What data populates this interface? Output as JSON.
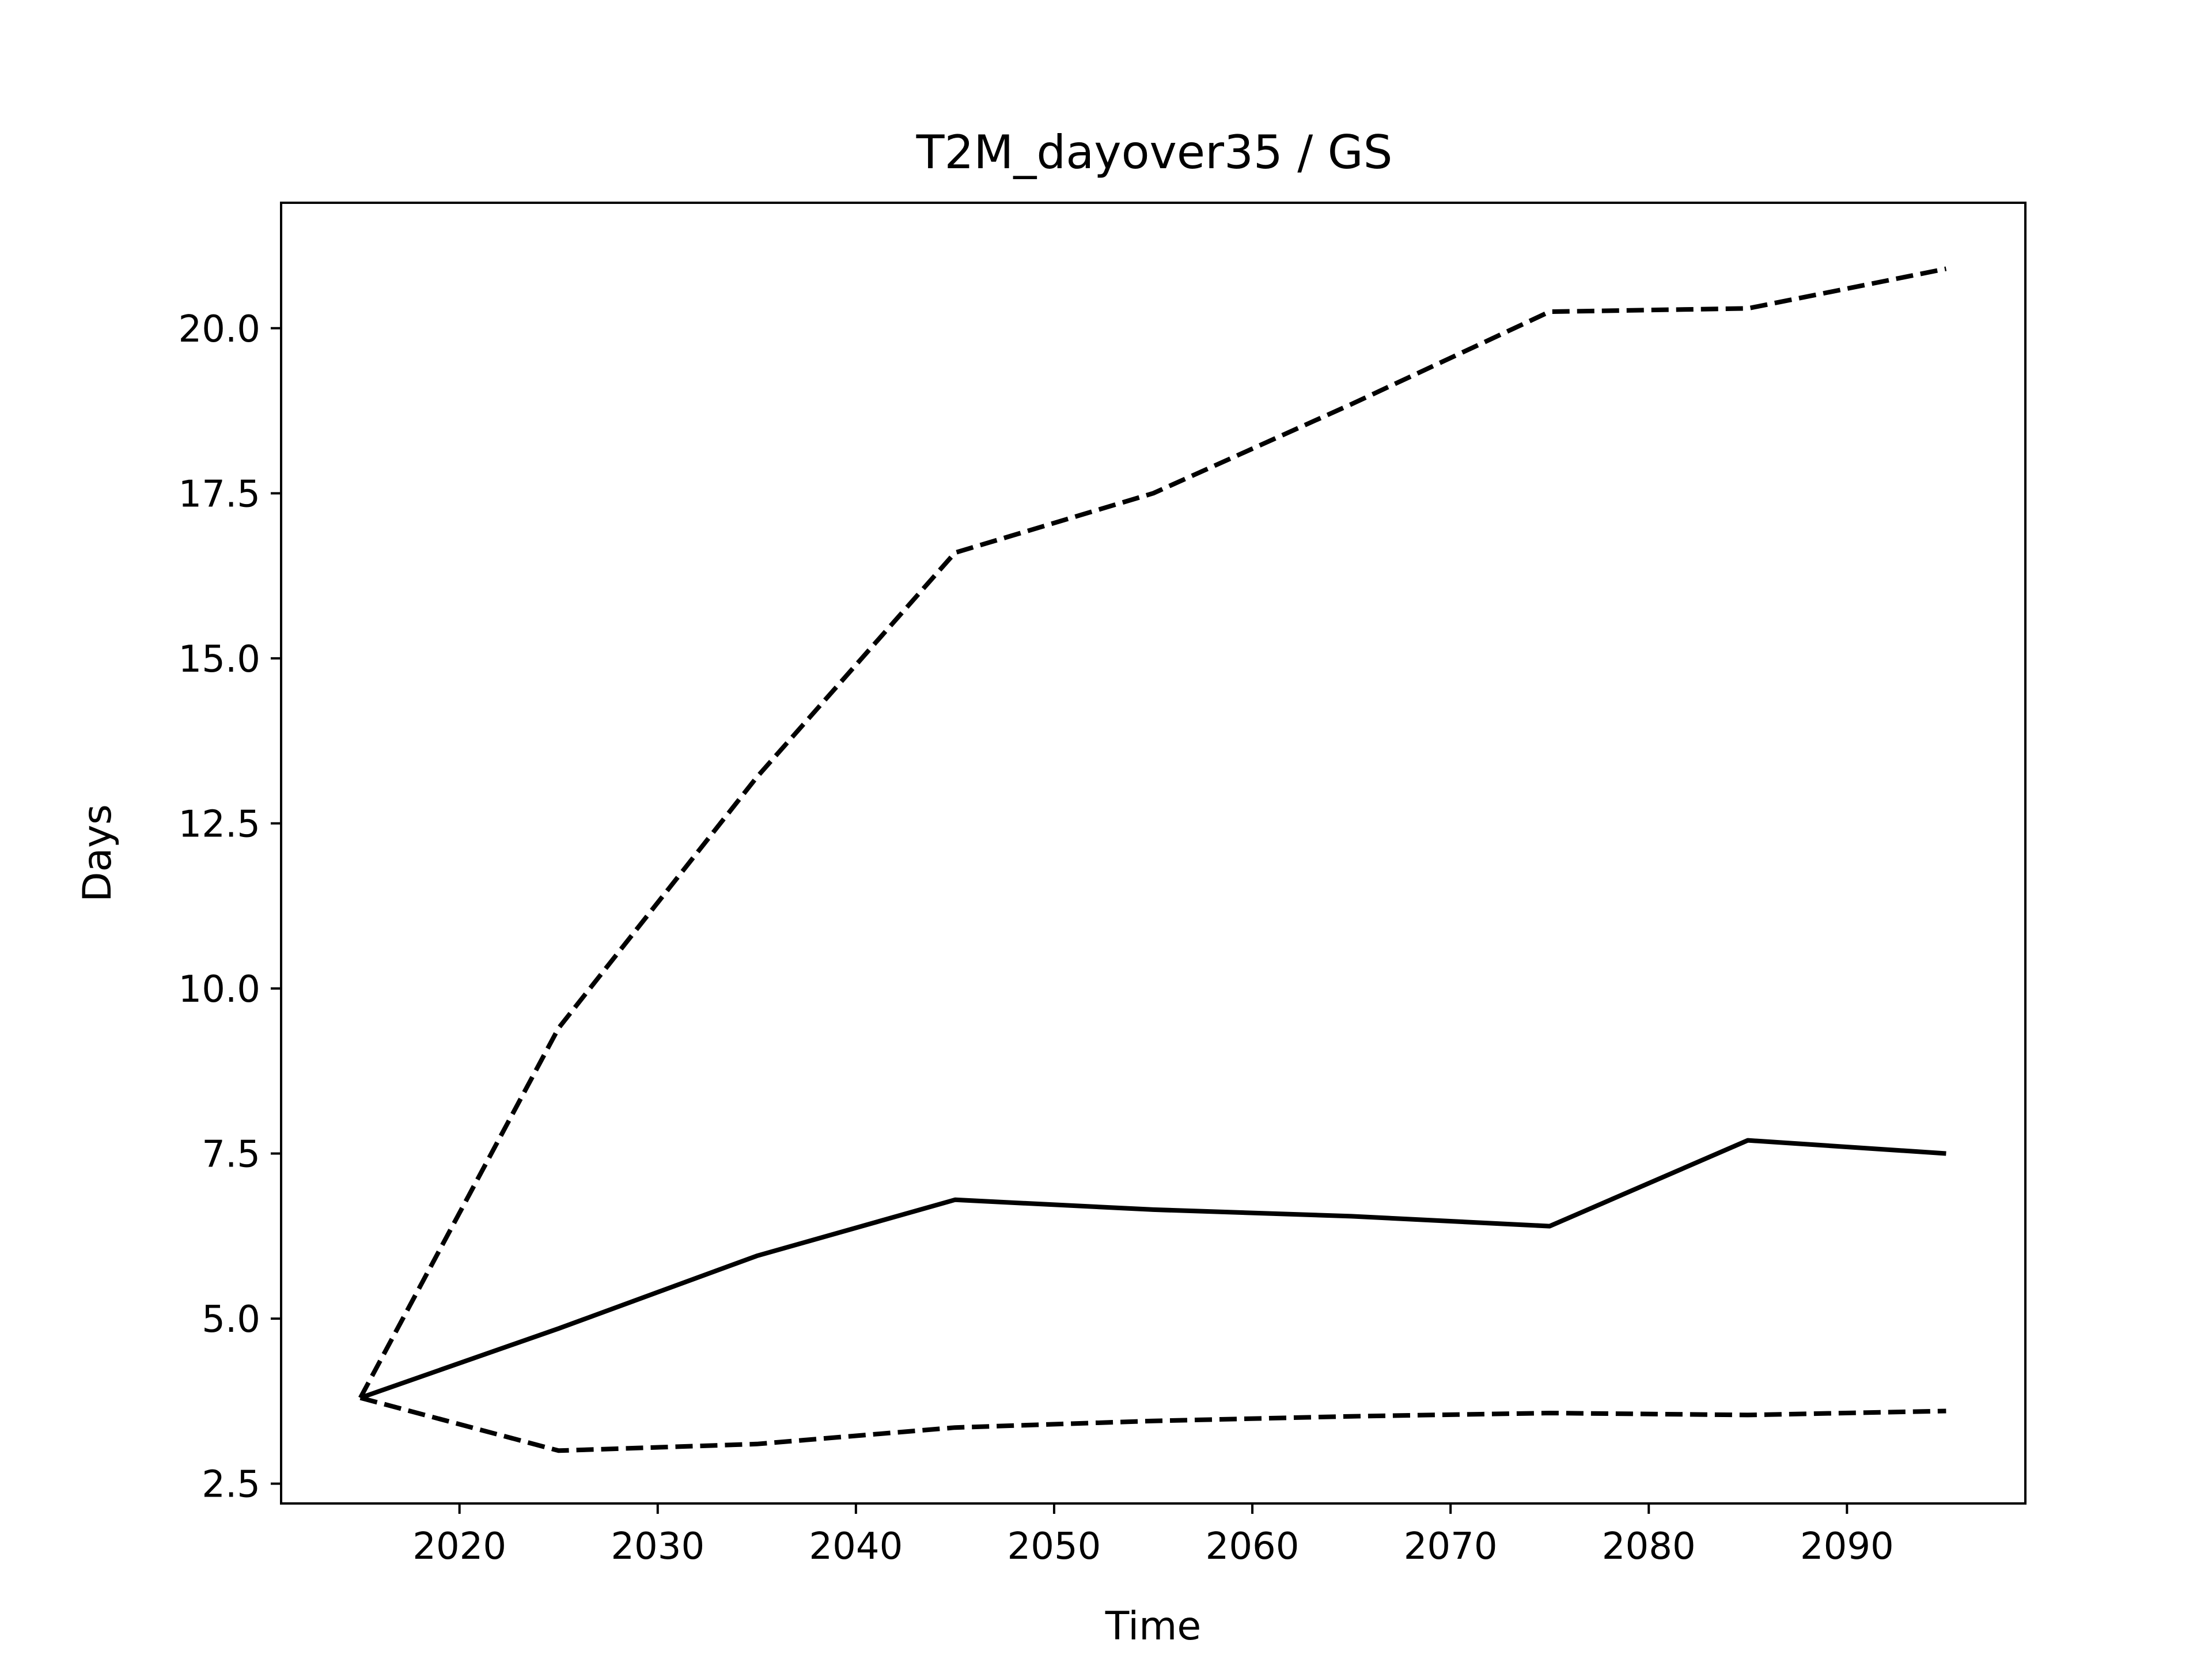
{
  "chart_data": {
    "type": "line",
    "title": "T2M_dayover35 / GS",
    "xlabel": "Time",
    "ylabel": "Days",
    "xlim": [
      2011,
      2099
    ],
    "ylim": [
      2.2,
      21.9
    ],
    "grid": false,
    "legend": "none",
    "x_ticks": [
      2020,
      2030,
      2040,
      2050,
      2060,
      2070,
      2080,
      2090
    ],
    "y_ticks": [
      2.5,
      5.0,
      7.5,
      10.0,
      12.5,
      15.0,
      17.5,
      20.0
    ],
    "x_tick_labels": [
      "2020",
      "2030",
      "2040",
      "2050",
      "2060",
      "2070",
      "2080",
      "2090"
    ],
    "y_tick_labels": [
      "2.5",
      "5.0",
      "7.5",
      "10.0",
      "12.5",
      "15.0",
      "17.5",
      "20.0"
    ],
    "x": [
      2015,
      2025,
      2035,
      2045,
      2055,
      2065,
      2075,
      2085,
      2095
    ],
    "series": [
      {
        "style": "solid",
        "color": "#000000",
        "values": [
          3.8,
          4.85,
          5.95,
          6.8,
          6.65,
          6.55,
          6.4,
          7.7,
          7.5
        ]
      },
      {
        "style": "dashed",
        "color": "#000000",
        "values": [
          3.8,
          9.4,
          13.2,
          16.6,
          17.5,
          18.85,
          20.25,
          20.3,
          20.9
        ]
      },
      {
        "style": "dashed",
        "color": "#000000",
        "values": [
          3.8,
          3.0,
          3.1,
          3.35,
          3.45,
          3.52,
          3.57,
          3.54,
          3.6
        ]
      }
    ]
  }
}
